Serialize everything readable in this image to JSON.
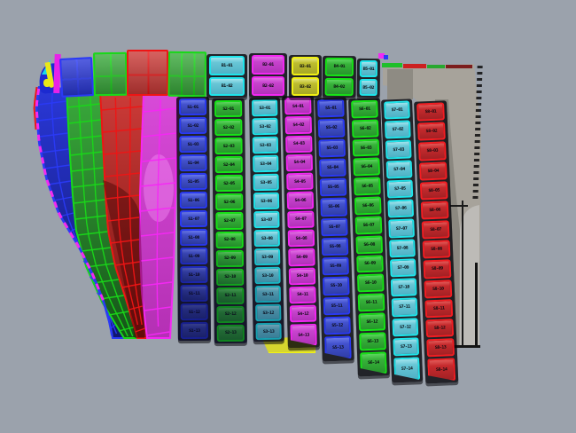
{
  "palette": {
    "background": "#9ba2ac",
    "gap_black": "#08080c",
    "plate_colors": {
      "blue": {
        "border": "#2a3af2",
        "light": "#6a79e8",
        "fill": "#4352ce",
        "fill2": "#303ea8"
      },
      "green": {
        "border": "#17e417",
        "light": "#5ed660",
        "fill": "#37b23a",
        "fill2": "#27962c"
      },
      "cyan": {
        "border": "#1fe4ea",
        "light": "#a2e4ee",
        "fill": "#68c6d6",
        "fill2": "#4fb2c6"
      },
      "magenta": {
        "border": "#f228f2",
        "light": "#e272e4",
        "fill": "#c743cd",
        "fill2": "#b232ba"
      },
      "red": {
        "border": "#f21d22",
        "light": "#e05a58",
        "fill": "#c52a2d",
        "fill2": "#a32124"
      },
      "yellow": {
        "border": "#f0f014",
        "light": "#e4e47a",
        "fill": "#bdbd2f",
        "fill2": "#a8a826"
      }
    },
    "hull_bands": {
      "blue": {
        "grid": "#2a3af6",
        "top": "#2a38d8",
        "bottom": "#10166e"
      },
      "green": {
        "grid": "#19d819",
        "top": "#3aaa3c",
        "bottom": "#155418"
      },
      "red": {
        "grid": "#ee1515",
        "top": "#cc3b38",
        "bottom": "#7a1412"
      },
      "magenta": {
        "grid": "#f428f4",
        "top": "#d84ad8",
        "bottom": "#b430b4"
      }
    },
    "superstructure": {
      "face": "#a7a39b",
      "shade": "#8e8b83",
      "band": "#8b8880",
      "panel": "#bdbbb7",
      "outline": "#141414"
    },
    "edge_dash": "#f22af2"
  },
  "band_grid_columns": [
    {
      "color": "blue"
    },
    {
      "color": "green"
    },
    {
      "color": "red"
    },
    {
      "color": "green"
    }
  ],
  "band_plate_columns": [
    {
      "color": "cyan",
      "labels": [
        "B1-01",
        "B1-02"
      ]
    },
    {
      "color": "magenta",
      "labels": [
        "B2-01",
        "B2-02"
      ]
    },
    {
      "color": "yellow",
      "labels": [
        "B3-01",
        "B3-02"
      ]
    },
    {
      "color": "green",
      "labels": [
        "B4-01",
        "B4-02"
      ]
    },
    {
      "color": "cyan",
      "labels": [
        "B5-01",
        "B5-02"
      ]
    }
  ],
  "main_columns": [
    {
      "color": "blue",
      "labels": [
        "S1-01",
        "S1-02",
        "S1-03",
        "S1-04",
        "S1-05",
        "S1-06",
        "S1-07",
        "S1-08",
        "S1-09",
        "S1-10",
        "S1-11",
        "S1-12",
        "S1-13"
      ]
    },
    {
      "color": "green",
      "labels": [
        "S2-01",
        "S2-02",
        "S2-03",
        "S2-04",
        "S2-05",
        "S2-06",
        "S2-07",
        "S2-08",
        "S2-09",
        "S2-10",
        "S2-11",
        "S2-12",
        "S2-13"
      ]
    },
    {
      "color": "cyan",
      "labels": [
        "S3-01",
        "S3-02",
        "S3-03",
        "S3-04",
        "S3-05",
        "S3-06",
        "S3-07",
        "S3-08",
        "S3-09",
        "S3-10",
        "S3-11",
        "S3-12",
        "S3-13"
      ]
    },
    {
      "color": "magenta",
      "labels": [
        "S4-01",
        "S4-02",
        "S4-03",
        "S4-04",
        "S4-05",
        "S4-06",
        "S4-07",
        "S4-08",
        "S4-09",
        "S4-10",
        "S4-11",
        "S4-12",
        "S4-13"
      ]
    },
    {
      "color": "blue",
      "labels": [
        "S5-01",
        "S5-02",
        "S5-03",
        "S5-04",
        "S5-05",
        "S5-06",
        "S5-07",
        "S5-08",
        "S5-09",
        "S5-10",
        "S5-11",
        "S5-12",
        "S5-13"
      ]
    },
    {
      "color": "green",
      "labels": [
        "S6-01",
        "S6-02",
        "S6-03",
        "S6-04",
        "S6-05",
        "S6-06",
        "S6-07",
        "S6-08",
        "S6-09",
        "S6-10",
        "S6-11",
        "S6-12",
        "S6-13",
        "S6-14"
      ]
    },
    {
      "color": "cyan",
      "labels": [
        "S7-01",
        "S7-02",
        "S7-03",
        "S7-04",
        "S7-05",
        "S7-06",
        "S7-07",
        "S7-08",
        "S7-09",
        "S7-10",
        "S7-11",
        "S7-12",
        "S7-13",
        "S7-14"
      ]
    },
    {
      "color": "red",
      "labels": [
        "S8-01",
        "S8-02",
        "S8-03",
        "S8-04",
        "S8-05",
        "S8-06",
        "S8-07",
        "S8-08",
        "S8-09",
        "S8-10",
        "S8-11",
        "S8-12",
        "S8-13",
        "S8-14"
      ]
    }
  ]
}
